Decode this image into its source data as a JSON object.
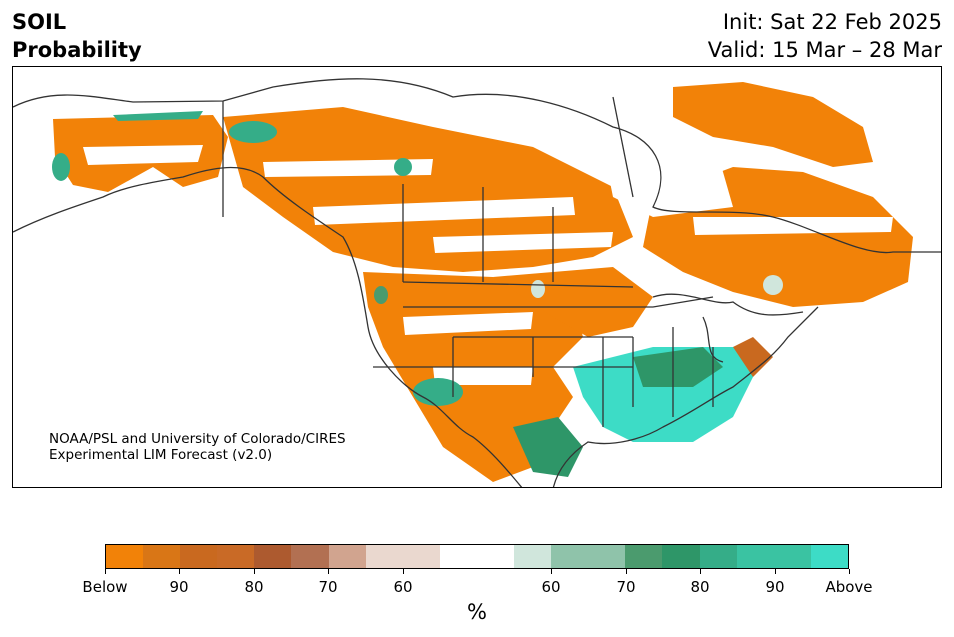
{
  "header": {
    "variable": "SOIL",
    "product": "Probability",
    "init": "Init: Sat 22 Feb 2025",
    "valid": "Valid: 15 Mar – 28 Mar"
  },
  "credit": {
    "line1": "NOAA/PSL and University of Colorado/CIRES",
    "line2": "Experimental LIM Forecast (v2.0)"
  },
  "colorbar": {
    "unit": "%",
    "colors": [
      "#f28208",
      "#d97616",
      "#c9691f",
      "#c96a26",
      "#ad5a2f",
      "#b27052",
      "#d1a48f",
      "#ead8cf",
      "#ead8cf",
      "#ffffff",
      "#ffffff",
      "#d0e6dc",
      "#8fc3aa",
      "#8fc3aa",
      "#4b9b6e",
      "#2e9668",
      "#35ad88",
      "#3ac3a2",
      "#3ac3a2",
      "#3ddcc6"
    ],
    "ticks": [
      "Below",
      "90",
      "80",
      "70",
      "60",
      "60",
      "70",
      "80",
      "90",
      "Above"
    ]
  },
  "legend_colors": {
    "below_strong": "#f28208",
    "below_mid": "#c9691f",
    "below_weak": "#ead8cf",
    "above_weak": "#d0e6dc",
    "above_mid": "#2e9668",
    "above_strong": "#3ddcc6",
    "boundaries": "#333333"
  }
}
